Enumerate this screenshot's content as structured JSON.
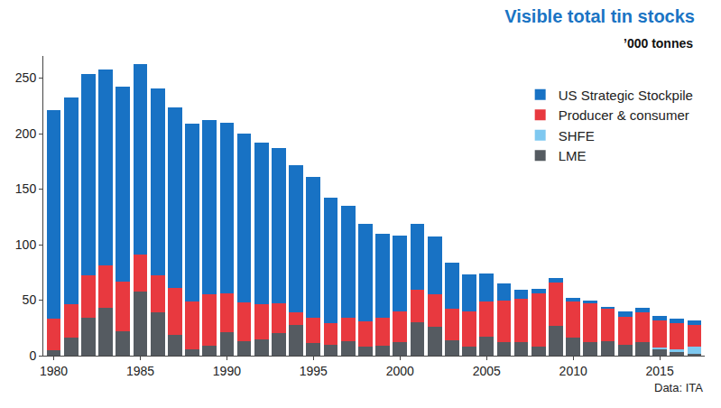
{
  "chart_data": {
    "type": "bar",
    "stacked": true,
    "title": "Visible total tin stocks",
    "subtitle": "’000 tonnes",
    "annotation": "Data: ITA",
    "x": [
      1980,
      1981,
      1982,
      1983,
      1984,
      1985,
      1986,
      1987,
      1988,
      1989,
      1990,
      1991,
      1992,
      1993,
      1994,
      1995,
      1996,
      1997,
      1998,
      1999,
      2000,
      2001,
      2002,
      2003,
      2004,
      2005,
      2006,
      2007,
      2008,
      2009,
      2010,
      2011,
      2012,
      2013,
      2014,
      2015,
      2016,
      2017
    ],
    "series": [
      {
        "name": "LME",
        "color": "#555b61",
        "values": [
          5,
          16,
          34,
          43,
          22,
          58,
          39,
          19,
          6,
          9,
          21,
          13,
          15,
          20,
          28,
          11,
          10,
          13,
          8,
          9,
          12,
          30,
          26,
          14,
          8,
          17,
          12,
          12,
          8,
          27,
          16,
          12,
          13,
          10,
          12,
          6,
          3,
          2
        ]
      },
      {
        "name": "SHFE",
        "color": "#7ec8f0",
        "values": [
          0,
          0,
          0,
          0,
          0,
          0,
          0,
          0,
          0,
          0,
          0,
          0,
          0,
          0,
          0,
          0,
          0,
          0,
          0,
          0,
          0,
          0,
          0,
          0,
          0,
          0,
          0,
          0,
          0,
          0,
          0,
          0,
          0,
          0,
          0,
          1,
          3,
          6
        ]
      },
      {
        "name": "Producer & consumer",
        "color": "#e8393f",
        "values": [
          28,
          30,
          38,
          38,
          45,
          33,
          33,
          42,
          43,
          46,
          35,
          35,
          31,
          27,
          11,
          23,
          19,
          21,
          23,
          25,
          28,
          29,
          29,
          28,
          32,
          32,
          38,
          39,
          48,
          39,
          33,
          35,
          29,
          25,
          27,
          25,
          23,
          20
        ]
      },
      {
        "name": "US Strategic Stockpile",
        "color": "#1872c4",
        "values": [
          188,
          187,
          182,
          177,
          175,
          172,
          169,
          163,
          160,
          157,
          154,
          152,
          146,
          140,
          133,
          127,
          113,
          101,
          88,
          76,
          68,
          60,
          52,
          42,
          33,
          25,
          15,
          8,
          4,
          4,
          3,
          3,
          2,
          5,
          4,
          4,
          4,
          4
        ]
      }
    ],
    "xlim": [
      1979.4,
      2017.6
    ],
    "xticks": [
      1980,
      1985,
      1990,
      1995,
      2000,
      2005,
      2010,
      2015
    ],
    "ylim": [
      0,
      270
    ],
    "yticks": [
      0,
      50,
      100,
      150,
      200,
      250
    ],
    "grid": false,
    "legend": "top-right"
  }
}
